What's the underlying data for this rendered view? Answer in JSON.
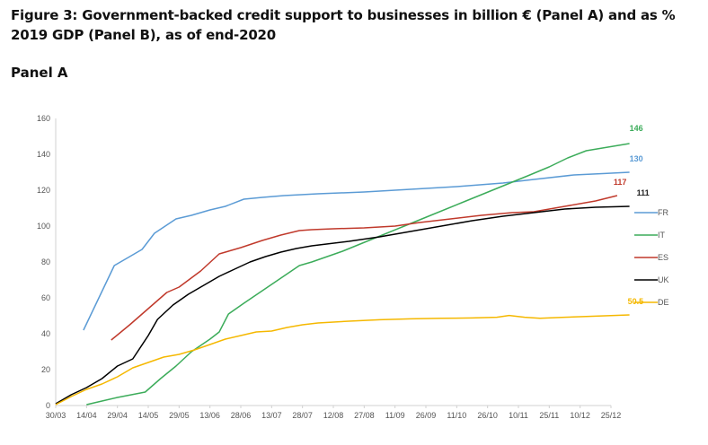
{
  "figure": {
    "title": "Figure 3: Government-backed credit support to businesses in billion € (Panel A) and as % 2019 GDP (Panel B), as of end-2020",
    "panel_label": "Panel A"
  },
  "chart_data": {
    "type": "line",
    "title": "",
    "xlabel": "",
    "ylabel": "",
    "ylim": [
      0,
      160
    ],
    "y_ticks": [
      0,
      20,
      40,
      60,
      80,
      100,
      120,
      140,
      160
    ],
    "x_tick_labels": [
      "30/03",
      "14/04",
      "29/04",
      "14/05",
      "29/05",
      "13/06",
      "28/06",
      "13/07",
      "28/07",
      "12/08",
      "27/08",
      "11/09",
      "26/09",
      "11/10",
      "26/10",
      "10/11",
      "25/11",
      "10/12",
      "25/12"
    ],
    "x_unit": "days",
    "grid": "none",
    "legend": "right",
    "series": [
      {
        "name": "FR",
        "color": "#5b9bd5",
        "end_label": "130",
        "points": [
          [
            0.9,
            42
          ],
          [
            1.9,
            78
          ],
          [
            2.4,
            83
          ],
          [
            2.8,
            87
          ],
          [
            3.2,
            96
          ],
          [
            3.9,
            104
          ],
          [
            4.4,
            106
          ],
          [
            5,
            109
          ],
          [
            5.5,
            111
          ],
          [
            6.1,
            115
          ],
          [
            6.7,
            116
          ],
          [
            7.4,
            117
          ],
          [
            8.5,
            118
          ],
          [
            10,
            119
          ],
          [
            11.5,
            120.5
          ],
          [
            13,
            122
          ],
          [
            14.5,
            124
          ],
          [
            15.5,
            126
          ],
          [
            16.8,
            128.5
          ],
          [
            17.8,
            129.3
          ],
          [
            18.6,
            130
          ]
        ]
      },
      {
        "name": "IT",
        "color": "#3cac5a",
        "end_label": "146",
        "points": [
          [
            1,
            0.5
          ],
          [
            1.5,
            2.5
          ],
          [
            2,
            4.5
          ],
          [
            2.9,
            7.5
          ],
          [
            3.4,
            15
          ],
          [
            3.9,
            22
          ],
          [
            4.4,
            30
          ],
          [
            5,
            37
          ],
          [
            5.3,
            41
          ],
          [
            5.6,
            51
          ],
          [
            6.1,
            57
          ],
          [
            6.7,
            64
          ],
          [
            7.3,
            71
          ],
          [
            7.9,
            78
          ],
          [
            8.3,
            80
          ],
          [
            9.3,
            86
          ],
          [
            10.3,
            93
          ],
          [
            11.3,
            100
          ],
          [
            12.3,
            107
          ],
          [
            13.3,
            114
          ],
          [
            14.3,
            121
          ],
          [
            15.3,
            128
          ],
          [
            16,
            133
          ],
          [
            16.6,
            138
          ],
          [
            17.2,
            142
          ],
          [
            18.6,
            146
          ]
        ]
      },
      {
        "name": "ES",
        "color": "#c0392b",
        "end_label": "117",
        "points": [
          [
            1.8,
            36.5
          ],
          [
            2.4,
            45
          ],
          [
            3,
            54
          ],
          [
            3.6,
            63
          ],
          [
            4,
            66
          ],
          [
            4.7,
            75
          ],
          [
            5.3,
            84.5
          ],
          [
            6,
            88
          ],
          [
            6.7,
            92
          ],
          [
            7.3,
            95
          ],
          [
            7.9,
            97.5
          ],
          [
            8.3,
            98
          ],
          [
            9,
            98.5
          ],
          [
            10,
            99
          ],
          [
            11,
            100
          ],
          [
            11.8,
            102
          ],
          [
            12.8,
            104
          ],
          [
            13.8,
            106
          ],
          [
            14.8,
            107.5
          ],
          [
            15.5,
            108
          ],
          [
            16.5,
            111
          ],
          [
            17.5,
            114
          ],
          [
            18.2,
            117
          ]
        ]
      },
      {
        "name": "UK",
        "color": "#000000",
        "end_label": "111",
        "points": [
          [
            0,
            1
          ],
          [
            0.5,
            6
          ],
          [
            1,
            10
          ],
          [
            1.5,
            15
          ],
          [
            2,
            22
          ],
          [
            2.5,
            26
          ],
          [
            3,
            39
          ],
          [
            3.3,
            48
          ],
          [
            3.8,
            56
          ],
          [
            4.3,
            62
          ],
          [
            4.8,
            67
          ],
          [
            5.3,
            72
          ],
          [
            5.8,
            76
          ],
          [
            6.3,
            80
          ],
          [
            6.8,
            83
          ],
          [
            7.3,
            85.5
          ],
          [
            7.8,
            87.5
          ],
          [
            8.3,
            89
          ],
          [
            9.5,
            91.5
          ],
          [
            10.5,
            94
          ],
          [
            11.5,
            97
          ],
          [
            12.5,
            100
          ],
          [
            13.5,
            103
          ],
          [
            14.5,
            105.5
          ],
          [
            15.5,
            107.5
          ],
          [
            16.5,
            109.5
          ],
          [
            17.5,
            110.5
          ],
          [
            18.6,
            111
          ]
        ]
      },
      {
        "name": "DE",
        "color": "#f5b800",
        "end_label": "50.5",
        "points": [
          [
            0,
            0.5
          ],
          [
            0.5,
            5
          ],
          [
            1,
            9
          ],
          [
            1.5,
            12
          ],
          [
            2,
            16
          ],
          [
            2.5,
            21
          ],
          [
            3,
            24
          ],
          [
            3.5,
            27
          ],
          [
            4,
            28.5
          ],
          [
            4.5,
            31
          ],
          [
            5,
            34
          ],
          [
            5.5,
            37
          ],
          [
            6,
            39
          ],
          [
            6.5,
            41
          ],
          [
            7,
            41.5
          ],
          [
            7.5,
            43.5
          ],
          [
            8,
            45
          ],
          [
            8.5,
            46
          ],
          [
            9.5,
            47
          ],
          [
            10.5,
            47.8
          ],
          [
            11.5,
            48.3
          ],
          [
            12.5,
            48.6
          ],
          [
            13.5,
            48.8
          ],
          [
            14.3,
            49.2
          ],
          [
            14.7,
            50.2
          ],
          [
            15.2,
            49.2
          ],
          [
            15.7,
            48.6
          ],
          [
            16.5,
            49.2
          ],
          [
            17.5,
            49.8
          ],
          [
            18.6,
            50.5
          ]
        ]
      }
    ]
  }
}
